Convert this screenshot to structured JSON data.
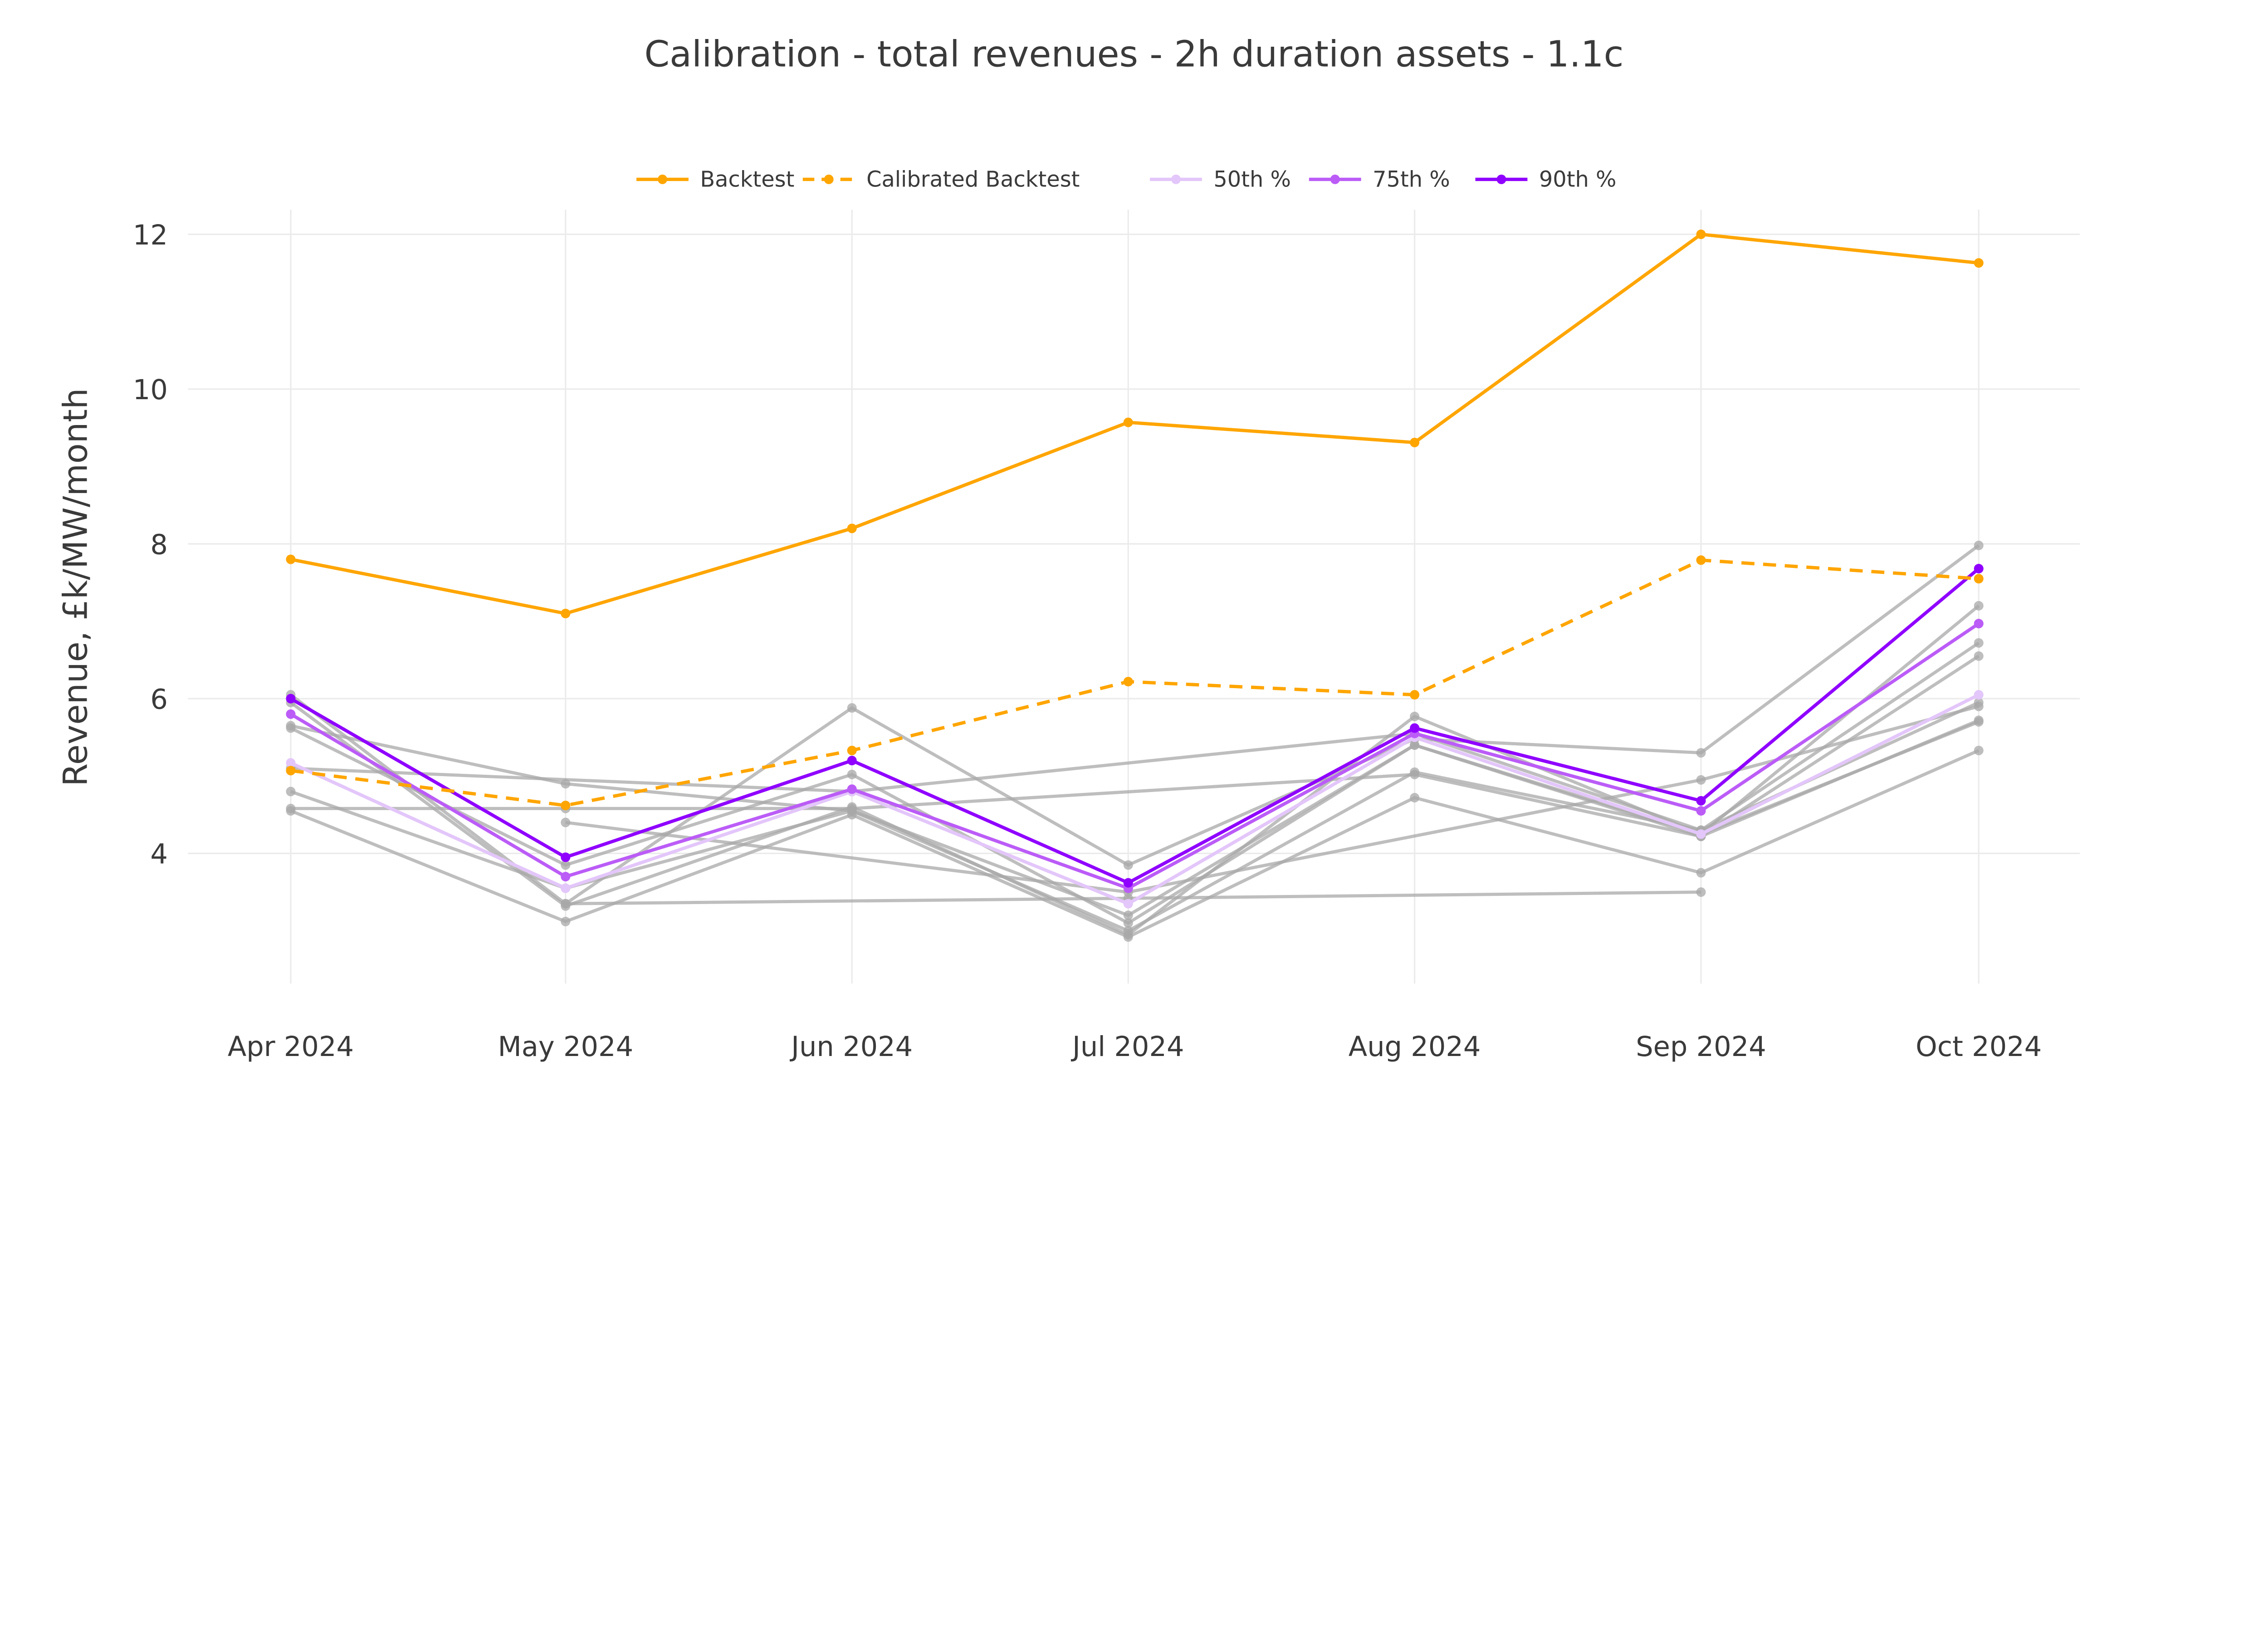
{
  "chart_data": {
    "type": "line",
    "title": "Calibration - total revenues - 2h duration assets - 1.1c",
    "xlabel": "",
    "ylabel": "Revenue, £k/MW/month",
    "categories": [
      "Apr 2024",
      "May 2024",
      "Jun 2024",
      "Jul 2024",
      "Aug 2024",
      "Sep 2024",
      "Oct 2024"
    ],
    "yticks": [
      4,
      6,
      8,
      10,
      12
    ],
    "ylim": [
      2.3,
      12.6
    ],
    "grid": true,
    "legend_position": "top-center",
    "series": [
      {
        "name": "Backtest",
        "color": "#FFA500",
        "dash": "solid",
        "values": [
          7.8,
          7.1,
          8.2,
          9.57,
          9.31,
          12.0,
          11.63
        ]
      },
      {
        "name": "Calibrated Backtest",
        "color": "#FFA500",
        "dash": "dash",
        "values": [
          5.07,
          4.62,
          5.33,
          6.22,
          6.05,
          7.79,
          7.55
        ]
      },
      {
        "name": "50th %",
        "color": "#E3C6FA",
        "dash": "solid",
        "values": [
          5.17,
          3.55,
          4.8,
          3.35,
          5.5,
          4.25,
          6.05
        ]
      },
      {
        "name": "75th %",
        "color": "#BB5CF7",
        "dash": "solid",
        "values": [
          5.8,
          3.7,
          4.83,
          3.55,
          5.55,
          4.55,
          6.97
        ]
      },
      {
        "name": "90th %",
        "color": "#8F00FF",
        "dash": "solid",
        "values": [
          6.0,
          3.95,
          5.2,
          3.62,
          5.62,
          4.68,
          7.68
        ]
      }
    ],
    "background_series_color": "#A8A8A8",
    "background_series": [
      [
        6.05,
        3.35,
        5.88,
        3.85,
        5.48,
        5.3,
        7.98
      ],
      [
        5.95,
        3.32,
        4.6,
        2.95,
        5.77,
        4.25,
        7.2
      ],
      [
        5.65,
        4.9,
        4.55,
        3.0,
        5.05,
        4.3,
        6.72
      ],
      [
        5.62,
        3.85,
        5.02,
        3.1,
        5.4,
        4.22,
        6.55
      ],
      [
        5.1,
        null,
        4.8,
        null,
        5.55,
        4.3,
        5.95
      ],
      [
        4.8,
        3.55,
        4.55,
        3.2,
        5.4,
        4.25,
        5.7
      ],
      [
        4.58,
        4.58,
        4.58,
        null,
        5.02,
        4.22,
        5.72
      ],
      [
        4.55,
        3.12,
        4.5,
        2.92,
        4.72,
        3.75,
        5.33
      ],
      [
        null,
        4.4,
        null,
        3.5,
        null,
        4.95,
        5.9
      ],
      [
        null,
        3.35,
        null,
        3.42,
        null,
        3.5,
        null
      ]
    ]
  }
}
